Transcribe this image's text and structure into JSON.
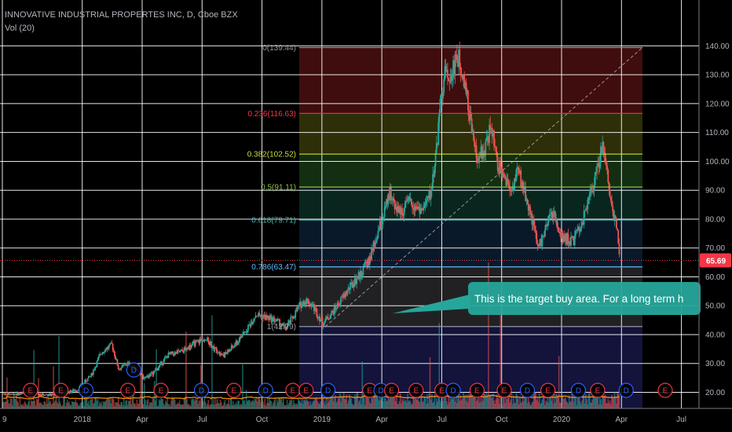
{
  "header": {
    "title": "INNOVATIVE INDUSTRIAL PROPERTES INC, D, Cboe BZX",
    "volume_indicator": "Vol (20)"
  },
  "current_price": {
    "label": "65.69",
    "value": 65.69,
    "color": "#f23645"
  },
  "callout": {
    "text": "This is the target buy area. For a long term h",
    "color": "#26a69a"
  },
  "fibonacci": {
    "anchor_high": 139.44,
    "anchor_low": 42.79,
    "levels": [
      {
        "label": "0(139.44)",
        "price": 139.44,
        "color": "#9598a1",
        "fill": ""
      },
      {
        "label": "0.236(116.63)",
        "price": 116.63,
        "color": "#f23645",
        "fill": "rgba(150,30,30,0.42)"
      },
      {
        "label": "0.382(102.52)",
        "price": 102.52,
        "color": "#cddc39",
        "fill": "rgba(110,110,20,0.42)"
      },
      {
        "label": "0.5(91.11)",
        "price": 91.11,
        "color": "#8bc34a",
        "fill": "rgba(45,110,40,0.42)"
      },
      {
        "label": "0.618(79.71)",
        "price": 79.71,
        "color": "#4db6ac",
        "fill": "rgba(20,90,70,0.42)"
      },
      {
        "label": "0.786(63.47)",
        "price": 63.47,
        "color": "#64b5f6",
        "fill": "rgba(25,60,100,0.42)"
      },
      {
        "label": "1(42.79)",
        "price": 42.79,
        "color": "#9598a1",
        "fill": "rgba(60,60,66,0.55)"
      }
    ],
    "below_fill": "rgba(35,35,110,0.55)"
  },
  "chart_data": {
    "type": "candlestick",
    "title": "INNOVATIVE INDUSTRIAL PROPERTES INC, D, Cboe BZX",
    "ylim": [
      10,
      145
    ],
    "y_ticks": [
      20,
      30,
      40,
      50,
      60,
      70,
      80,
      90,
      100,
      110,
      120,
      130,
      140
    ],
    "y_tick_labels": [
      "20.00",
      "30.00",
      "40.00",
      "50.00",
      "60.00",
      "70.00",
      "80.00",
      "90.00",
      "100.00",
      "110.00",
      "120.00",
      "130.00",
      "140.00"
    ],
    "x_labels": [
      "9",
      "2018",
      "Apr",
      "Jul",
      "Oct",
      "2019",
      "Apr",
      "Jul",
      "Oct",
      "2020",
      "Apr",
      "Jul"
    ],
    "x_label_positions": [
      0,
      4,
      7,
      10,
      13,
      16,
      19,
      22,
      25,
      28,
      31,
      34
    ],
    "x_label_dates": [
      "2017-09",
      "2018-01",
      "2018-04",
      "2018-07",
      "2018-10",
      "2019-01",
      "2019-04",
      "2019-07",
      "2019-10",
      "2020-01",
      "2020-04",
      "2020-07"
    ],
    "price_path": [
      [
        "2017-08-25",
        19.5
      ],
      [
        "2017-10-01",
        19.5
      ],
      [
        "2017-11-15",
        19.0
      ],
      [
        "2017-12-15",
        21.0
      ],
      [
        "2018-01-05",
        26.0
      ],
      [
        "2018-01-20",
        34.0
      ],
      [
        "2018-02-05",
        36.5
      ],
      [
        "2018-02-15",
        28.0
      ],
      [
        "2018-03-01",
        30.0
      ],
      [
        "2018-03-15",
        27.5
      ],
      [
        "2018-03-25",
        25.0
      ],
      [
        "2018-04-10",
        27.0
      ],
      [
        "2018-05-01",
        33.0
      ],
      [
        "2018-05-20",
        34.0
      ],
      [
        "2018-06-10",
        37.0
      ],
      [
        "2018-06-25",
        39.0
      ],
      [
        "2018-07-10",
        35.0
      ],
      [
        "2018-07-25",
        33.0
      ],
      [
        "2018-08-10",
        36.5
      ],
      [
        "2018-08-25",
        41.0
      ],
      [
        "2018-09-10",
        47.0
      ],
      [
        "2018-09-25",
        46.0
      ],
      [
        "2018-10-10",
        45.0
      ],
      [
        "2018-10-25",
        42.0
      ],
      [
        "2018-11-05",
        46.0
      ],
      [
        "2018-11-15",
        50.0
      ],
      [
        "2018-11-25",
        52.0
      ],
      [
        "2018-12-05",
        50.0
      ],
      [
        "2018-12-20",
        44.0
      ],
      [
        "2019-01-05",
        48.0
      ],
      [
        "2019-01-20",
        53.0
      ],
      [
        "2019-02-01",
        57.0
      ],
      [
        "2019-02-15",
        61.0
      ],
      [
        "2019-03-01",
        66.0
      ],
      [
        "2019-03-20",
        80.0
      ],
      [
        "2019-04-01",
        89.0
      ],
      [
        "2019-04-15",
        82.0
      ],
      [
        "2019-05-01",
        86.0
      ],
      [
        "2019-05-20",
        83.0
      ],
      [
        "2019-06-01",
        89.0
      ],
      [
        "2019-06-10",
        105.0
      ],
      [
        "2019-06-18",
        125.0
      ],
      [
        "2019-06-25",
        133.0
      ],
      [
        "2019-07-01",
        128.0
      ],
      [
        "2019-07-10",
        137.0
      ],
      [
        "2019-07-20",
        131.0
      ],
      [
        "2019-08-01",
        112.0
      ],
      [
        "2019-08-10",
        100.0
      ],
      [
        "2019-08-20",
        104.0
      ],
      [
        "2019-09-01",
        112.0
      ],
      [
        "2019-09-10",
        98.0
      ],
      [
        "2019-09-20",
        95.0
      ],
      [
        "2019-10-01",
        90.0
      ],
      [
        "2019-10-10",
        97.0
      ],
      [
        "2019-10-20",
        90.0
      ],
      [
        "2019-11-01",
        80.0
      ],
      [
        "2019-11-10",
        70.0
      ],
      [
        "2019-11-20",
        75.0
      ],
      [
        "2019-12-01",
        83.0
      ],
      [
        "2019-12-15",
        74.0
      ],
      [
        "2020-01-01",
        72.0
      ],
      [
        "2020-01-15",
        78.0
      ],
      [
        "2020-02-01",
        92.0
      ],
      [
        "2020-02-10",
        100.0
      ],
      [
        "2020-02-15",
        106.0
      ],
      [
        "2020-02-22",
        97.0
      ],
      [
        "2020-03-01",
        83.0
      ],
      [
        "2020-03-08",
        78.0
      ],
      [
        "2020-03-12",
        65.69
      ]
    ],
    "volume_ylim": [
      0,
      40
    ],
    "events": [
      {
        "label": "E",
        "date": "2017-10-05",
        "row": 0
      },
      {
        "label": "E",
        "date": "2017-11-20",
        "row": 0
      },
      {
        "label": "D",
        "date": "2017-12-28",
        "row": 0
      },
      {
        "label": "E",
        "date": "2018-03-01",
        "row": 0
      },
      {
        "label": "D",
        "date": "2018-03-10",
        "row": 1
      },
      {
        "label": "E",
        "date": "2018-04-20",
        "row": 0
      },
      {
        "label": "D",
        "date": "2018-06-20",
        "row": 0
      },
      {
        "label": "E",
        "date": "2018-08-08",
        "row": 0
      },
      {
        "label": "D",
        "date": "2018-09-25",
        "row": 0
      },
      {
        "label": "E",
        "date": "2018-11-05",
        "row": 0
      },
      {
        "label": "E",
        "date": "2018-11-25",
        "row": 0
      },
      {
        "label": "D",
        "date": "2018-12-28",
        "row": 0
      },
      {
        "label": "E",
        "date": "2019-03-01",
        "row": 0
      },
      {
        "label": "D",
        "date": "2019-03-18",
        "row": 0
      },
      {
        "label": "E",
        "date": "2019-04-03",
        "row": 0
      },
      {
        "label": "E",
        "date": "2019-05-10",
        "row": 0
      },
      {
        "label": "E",
        "date": "2019-06-18",
        "row": 0
      },
      {
        "label": "D",
        "date": "2019-07-05",
        "row": 0
      },
      {
        "label": "E",
        "date": "2019-08-10",
        "row": 0
      },
      {
        "label": "E",
        "date": "2019-09-20",
        "row": 0
      },
      {
        "label": "D",
        "date": "2019-10-25",
        "row": 0
      },
      {
        "label": "E",
        "date": "2019-11-25",
        "row": 0
      },
      {
        "label": "D",
        "date": "2020-01-10",
        "row": 0
      },
      {
        "label": "E",
        "date": "2020-02-08",
        "row": 0
      },
      {
        "label": "D",
        "date": "2020-03-22",
        "row": 0
      },
      {
        "label": "E",
        "date": "2020-05-20",
        "row": 0
      }
    ]
  },
  "colors": {
    "up": "#26a69a",
    "down": "#ef5350",
    "grid": "#ffffff",
    "axis_text": "#b2b5be",
    "volume_ma": "#ff9800",
    "event_e": "#f23645",
    "event_d": "#2962ff",
    "background": "#000000"
  }
}
